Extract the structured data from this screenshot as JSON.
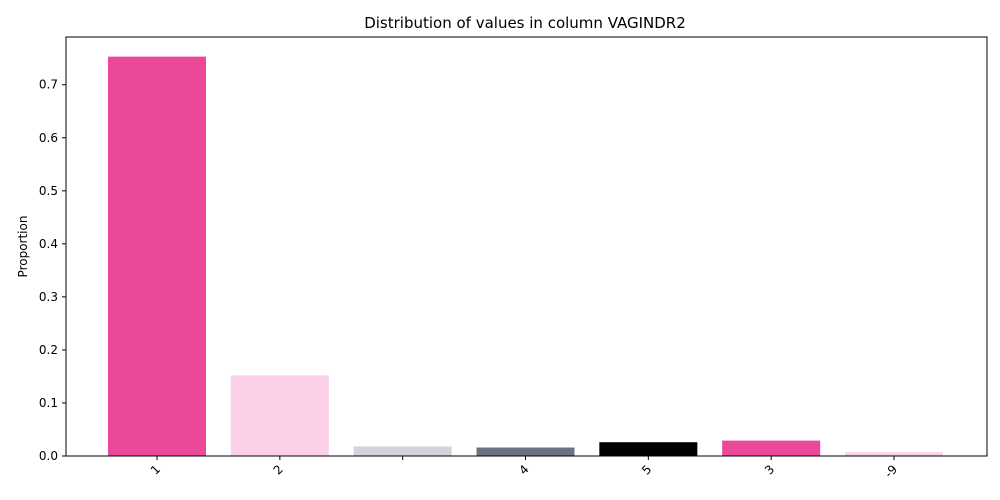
{
  "chart_data": {
    "type": "bar",
    "title": "Distribution of values in column VAGINDR2",
    "xlabel": "",
    "ylabel": "Proportion",
    "categories": [
      "1",
      "2",
      "",
      "4",
      "5",
      "3",
      "-9"
    ],
    "values": [
      0.753,
      0.152,
      0.018,
      0.016,
      0.026,
      0.029,
      0.007
    ],
    "colors": [
      "#ec4899",
      "#fbcfe8",
      "#d1d5db",
      "#6b7280",
      "#000000",
      "#ec4899",
      "#fbcfe8"
    ],
    "ylim": [
      0,
      0.79
    ],
    "yticks": [
      0.0,
      0.1,
      0.2,
      0.3,
      0.4,
      0.5,
      0.6,
      0.7
    ],
    "ytick_labels": [
      "0.0",
      "0.1",
      "0.2",
      "0.3",
      "0.4",
      "0.5",
      "0.6",
      "0.7"
    ],
    "grid": false,
    "legend": "none"
  }
}
